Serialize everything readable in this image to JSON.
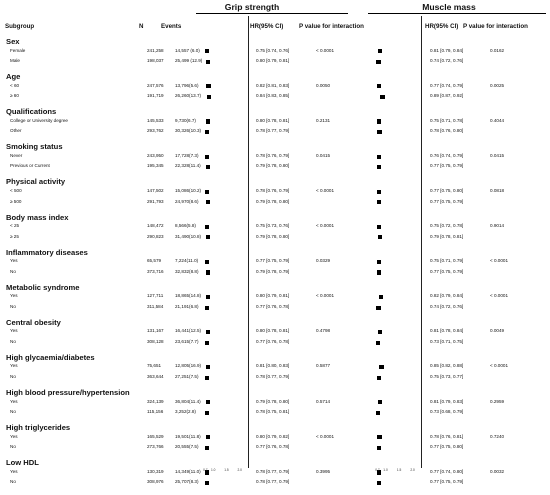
{
  "headers": {
    "subgroup": "Subgroup",
    "n": "N",
    "events": "Events",
    "grip_title": "Grip strength",
    "muscle_title": "Muscle mass",
    "hr": "HR(95% CI)",
    "p": "P value for interaction"
  },
  "axis_ticks": {
    "grip": [
      "0.7",
      "1.0",
      "1.5",
      "2.0"
    ],
    "muscle": [
      "0.7",
      "1.0",
      "1.5",
      "2.0"
    ]
  },
  "colors": {
    "text": "#111111",
    "marker": "#000000",
    "rule": "#222222"
  },
  "chart_data": {
    "type": "forest",
    "xlim": [
      0.5,
      2.2
    ],
    "groups": [
      {
        "name": "Sex",
        "rows": [
          {
            "label": "Female",
            "n": "241,258",
            "events": "14,557 (6.0)",
            "grip": {
              "hr": 0.75,
              "lo": 0.74,
              "hi": 0.76,
              "text": "0.75 [0.74, 0.76]"
            },
            "muscle": {
              "hr": 0.81,
              "lo": 0.79,
              "hi": 0.84,
              "text": "0.81 [0.79, 0.84]"
            }
          },
          {
            "label": "Male",
            "n": "198,037",
            "events": "25,499 (12.9)",
            "grip": {
              "hr": 0.8,
              "lo": 0.79,
              "hi": 0.81,
              "text": "0.80 [0.79, 0.81]"
            },
            "muscle": {
              "hr": 0.74,
              "lo": 0.72,
              "hi": 0.76,
              "text": "0.74 [0.72, 0.76]"
            }
          }
        ],
        "p_grip": "< 0.0001",
        "p_muscle": "0.0162"
      },
      {
        "name": "Age",
        "rows": [
          {
            "label": "< 60",
            "n": "247,576",
            "events": "13,796(5.6)",
            "grip": {
              "hr": 0.82,
              "lo": 0.81,
              "hi": 0.83,
              "text": "0.82 [0.81, 0.83]"
            },
            "muscle": {
              "hr": 0.77,
              "lo": 0.74,
              "hi": 0.79,
              "text": "0.77 [0.74, 0.79]"
            }
          },
          {
            "label": "≥ 60",
            "n": "191,719",
            "events": "26,260(13.7)",
            "grip": {
              "hr": 0.84,
              "lo": 0.83,
              "hi": 0.85,
              "text": "0.84 [0.83, 0.85]"
            },
            "muscle": {
              "hr": 0.89,
              "lo": 0.87,
              "hi": 0.92,
              "text": "0.89 [0.87, 0.92]"
            }
          }
        ],
        "p_grip": "0.0050",
        "p_muscle": "0.0025"
      },
      {
        "name": "Qualifications",
        "rows": [
          {
            "label": "College or University degree",
            "n": "145,533",
            "events": "9,730(6.7)",
            "grip": {
              "hr": 0.8,
              "lo": 0.78,
              "hi": 0.81,
              "text": "0.80 [0.78, 0.81]"
            },
            "muscle": {
              "hr": 0.75,
              "lo": 0.71,
              "hi": 0.78,
              "text": "0.75 [0.71, 0.78]"
            }
          },
          {
            "label": "Other",
            "n": "293,762",
            "events": "30,326(10.3)",
            "grip": {
              "hr": 0.78,
              "lo": 0.77,
              "hi": 0.79,
              "text": "0.78 [0.77, 0.79]"
            },
            "muscle": {
              "hr": 0.78,
              "lo": 0.76,
              "hi": 0.8,
              "text": "0.78 [0.76, 0.80]"
            }
          }
        ],
        "p_grip": "0.2131",
        "p_muscle": "0.4044"
      },
      {
        "name": "Smoking status",
        "rows": [
          {
            "label": "Never",
            "n": "243,950",
            "events": "17,728(7.3)",
            "grip": {
              "hr": 0.78,
              "lo": 0.76,
              "hi": 0.79,
              "text": "0.78 [0.76, 0.79]"
            },
            "muscle": {
              "hr": 0.76,
              "lo": 0.74,
              "hi": 0.79,
              "text": "0.76 [0.74, 0.79]"
            }
          },
          {
            "label": "Previous or Current",
            "n": "195,345",
            "events": "22,328(11.4)",
            "grip": {
              "hr": 0.79,
              "lo": 0.78,
              "hi": 0.8,
              "text": "0.79 [0.78, 0.80]"
            },
            "muscle": {
              "hr": 0.77,
              "lo": 0.75,
              "hi": 0.79,
              "text": "0.77 [0.75, 0.79]"
            }
          }
        ],
        "p_grip": "0.0415",
        "p_muscle": "0.0415"
      },
      {
        "name": "Physical activity",
        "rows": [
          {
            "label": "< 500",
            "n": "147,502",
            "events": "15,086(10.2)",
            "grip": {
              "hr": 0.78,
              "lo": 0.76,
              "hi": 0.79,
              "text": "0.78 [0.76, 0.79]"
            },
            "muscle": {
              "hr": 0.77,
              "lo": 0.75,
              "hi": 0.8,
              "text": "0.77 [0.75, 0.80]"
            }
          },
          {
            "label": "≥ 500",
            "n": "291,793",
            "events": "24,970(8.6)",
            "grip": {
              "hr": 0.79,
              "lo": 0.78,
              "hi": 0.8,
              "text": "0.79 [0.78, 0.80]"
            },
            "muscle": {
              "hr": 0.77,
              "lo": 0.75,
              "hi": 0.79,
              "text": "0.77 [0.75, 0.79]"
            }
          }
        ],
        "p_grip": "< 0.0001",
        "p_muscle": "0.0818"
      },
      {
        "name": "Body mass index",
        "rows": [
          {
            "label": "< 25",
            "n": "148,472",
            "events": "8,566(5.8)",
            "grip": {
              "hr": 0.75,
              "lo": 0.73,
              "hi": 0.76,
              "text": "0.75 [0.73, 0.76]"
            },
            "muscle": {
              "hr": 0.75,
              "lo": 0.72,
              "hi": 0.78,
              "text": "0.75 [0.72, 0.78]"
            }
          },
          {
            "label": "≥ 25",
            "n": "290,823",
            "events": "31,490(10.8)",
            "grip": {
              "hr": 0.79,
              "lo": 0.78,
              "hi": 0.8,
              "text": "0.79 [0.78, 0.80]"
            },
            "muscle": {
              "hr": 0.79,
              "lo": 0.78,
              "hi": 0.81,
              "text": "0.79 [0.78, 0.81]"
            }
          }
        ],
        "p_grip": "< 0.0001",
        "p_muscle": "0.9014"
      },
      {
        "name": "Inflammatory diseases",
        "rows": [
          {
            "label": "Yes",
            "n": "65,579",
            "events": "7,224(11.0)",
            "grip": {
              "hr": 0.77,
              "lo": 0.75,
              "hi": 0.79,
              "text": "0.77 [0.75, 0.79]"
            },
            "muscle": {
              "hr": 0.75,
              "lo": 0.71,
              "hi": 0.79,
              "text": "0.75 [0.71, 0.79]"
            }
          },
          {
            "label": "No",
            "n": "373,716",
            "events": "32,832(8.8)",
            "grip": {
              "hr": 0.79,
              "lo": 0.78,
              "hi": 0.79,
              "text": "0.79 [0.78, 0.79]"
            },
            "muscle": {
              "hr": 0.77,
              "lo": 0.75,
              "hi": 0.79,
              "text": "0.77 [0.75, 0.79]"
            }
          }
        ],
        "p_grip": "0.0329",
        "p_muscle": "< 0.0001"
      },
      {
        "name": "Metabolic syndrome",
        "rows": [
          {
            "label": "Yes",
            "n": "127,711",
            "events": "18,865(14.8)",
            "grip": {
              "hr": 0.8,
              "lo": 0.79,
              "hi": 0.81,
              "text": "0.80 [0.79, 0.81]"
            },
            "muscle": {
              "hr": 0.82,
              "lo": 0.79,
              "hi": 0.84,
              "text": "0.82 [0.79, 0.84]"
            }
          },
          {
            "label": "No",
            "n": "311,584",
            "events": "21,191(6.8)",
            "grip": {
              "hr": 0.77,
              "lo": 0.76,
              "hi": 0.78,
              "text": "0.77 [0.76, 0.78]"
            },
            "muscle": {
              "hr": 0.74,
              "lo": 0.72,
              "hi": 0.76,
              "text": "0.74 [0.72, 0.76]"
            }
          }
        ],
        "p_grip": "< 0.0001",
        "p_muscle": "< 0.0001"
      },
      {
        "name": "Central obesity",
        "rows": [
          {
            "label": "Yes",
            "n": "131,167",
            "events": "16,441(12.5)",
            "grip": {
              "hr": 0.8,
              "lo": 0.78,
              "hi": 0.81,
              "text": "0.80 [0.78, 0.81]"
            },
            "muscle": {
              "hr": 0.81,
              "lo": 0.78,
              "hi": 0.84,
              "text": "0.81 [0.78, 0.84]"
            }
          },
          {
            "label": "No",
            "n": "308,128",
            "events": "23,615(7.7)",
            "grip": {
              "hr": 0.77,
              "lo": 0.76,
              "hi": 0.78,
              "text": "0.77 [0.76, 0.78]"
            },
            "muscle": {
              "hr": 0.73,
              "lo": 0.71,
              "hi": 0.75,
              "text": "0.73 [0.71, 0.75]"
            }
          }
        ],
        "p_grip": "0.4798",
        "p_muscle": "0.0049"
      },
      {
        "name": "High glycaemia/diabetes",
        "rows": [
          {
            "label": "Yes",
            "n": "75,651",
            "events": "12,805(16.9)",
            "grip": {
              "hr": 0.81,
              "lo": 0.8,
              "hi": 0.83,
              "text": "0.81 [0.80, 0.83]"
            },
            "muscle": {
              "hr": 0.85,
              "lo": 0.82,
              "hi": 0.88,
              "text": "0.85 [0.82, 0.88]"
            }
          },
          {
            "label": "No",
            "n": "363,644",
            "events": "27,251(7.5)",
            "grip": {
              "hr": 0.78,
              "lo": 0.77,
              "hi": 0.79,
              "text": "0.78 [0.77, 0.79]"
            },
            "muscle": {
              "hr": 0.75,
              "lo": 0.73,
              "hi": 0.77,
              "text": "0.75 [0.73, 0.77]"
            }
          }
        ],
        "p_grip": "0.5877",
        "p_muscle": "< 0.0001"
      },
      {
        "name": "High blood pressure/hypertension",
        "rows": [
          {
            "label": "Yes",
            "n": "324,139",
            "events": "36,804(11.4)",
            "grip": {
              "hr": 0.79,
              "lo": 0.78,
              "hi": 0.8,
              "text": "0.79 [0.78, 0.80]"
            },
            "muscle": {
              "hr": 0.81,
              "lo": 0.79,
              "hi": 0.83,
              "text": "0.81 [0.79, 0.83]"
            }
          },
          {
            "label": "No",
            "n": "115,156",
            "events": "3,252(2.8)",
            "grip": {
              "hr": 0.78,
              "lo": 0.75,
              "hi": 0.81,
              "text": "0.78 [0.75, 0.81]"
            },
            "muscle": {
              "hr": 0.73,
              "lo": 0.68,
              "hi": 0.79,
              "text": "0.73 [0.68, 0.79]"
            }
          }
        ],
        "p_grip": "0.5714",
        "p_muscle": "0.2959"
      },
      {
        "name": "High triglycerides",
        "rows": [
          {
            "label": "Yes",
            "n": "165,529",
            "events": "19,501(11.8)",
            "grip": {
              "hr": 0.8,
              "lo": 0.79,
              "hi": 0.82,
              "text": "0.80 [0.79, 0.82]"
            },
            "muscle": {
              "hr": 0.78,
              "lo": 0.76,
              "hi": 0.81,
              "text": "0.78 [0.76, 0.81]"
            }
          },
          {
            "label": "No",
            "n": "273,766",
            "events": "20,555(7.5)",
            "grip": {
              "hr": 0.77,
              "lo": 0.76,
              "hi": 0.78,
              "text": "0.77 [0.76, 0.78]"
            },
            "muscle": {
              "hr": 0.77,
              "lo": 0.75,
              "hi": 0.8,
              "text": "0.77 [0.75, 0.80]"
            }
          }
        ],
        "p_grip": "< 0.0001",
        "p_muscle": "0.7240"
      },
      {
        "name": "Low HDL",
        "rows": [
          {
            "label": "Yes",
            "n": "130,319",
            "events": "14,349(11.0)",
            "grip": {
              "hr": 0.78,
              "lo": 0.77,
              "hi": 0.79,
              "text": "0.78 [0.77, 0.79]"
            },
            "muscle": {
              "hr": 0.77,
              "lo": 0.74,
              "hi": 0.8,
              "text": "0.77 [0.74, 0.80]"
            }
          },
          {
            "label": "No",
            "n": "308,976",
            "events": "25,707(8.3)",
            "grip": {
              "hr": 0.78,
              "lo": 0.77,
              "hi": 0.79,
              "text": "0.78 [0.77, 0.79]"
            },
            "muscle": {
              "hr": 0.77,
              "lo": 0.75,
              "hi": 0.79,
              "text": "0.77 [0.75, 0.79]"
            }
          }
        ],
        "p_grip": "0.3995",
        "p_muscle": "0.0032"
      }
    ]
  }
}
